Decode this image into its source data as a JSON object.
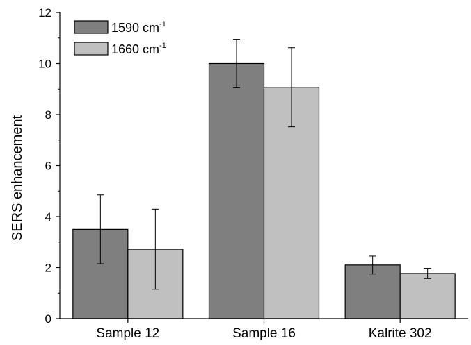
{
  "chart_data": {
    "type": "bar",
    "categories": [
      "Sample 12",
      "Sample 16",
      "Kalrite 302"
    ],
    "series": [
      {
        "name": "1590 cm-1",
        "name_base": "1590 cm",
        "name_sup": "-1",
        "color": "#7f7f7f",
        "values": [
          3.5,
          10.0,
          2.1
        ],
        "errors": [
          1.35,
          0.95,
          0.35
        ]
      },
      {
        "name": "1660 cm-1",
        "name_base": "1660 cm",
        "name_sup": "-1",
        "color": "#c0c0c0",
        "values": [
          2.72,
          9.07,
          1.77
        ],
        "errors": [
          1.57,
          1.55,
          0.2
        ]
      }
    ],
    "ylabel": "SERS enhancement",
    "xlabel": "",
    "title": "",
    "ylim": [
      0,
      12
    ],
    "yticks": [
      0,
      2,
      4,
      6,
      8,
      10,
      12
    ],
    "legend_position": "top-left",
    "grid": false
  }
}
